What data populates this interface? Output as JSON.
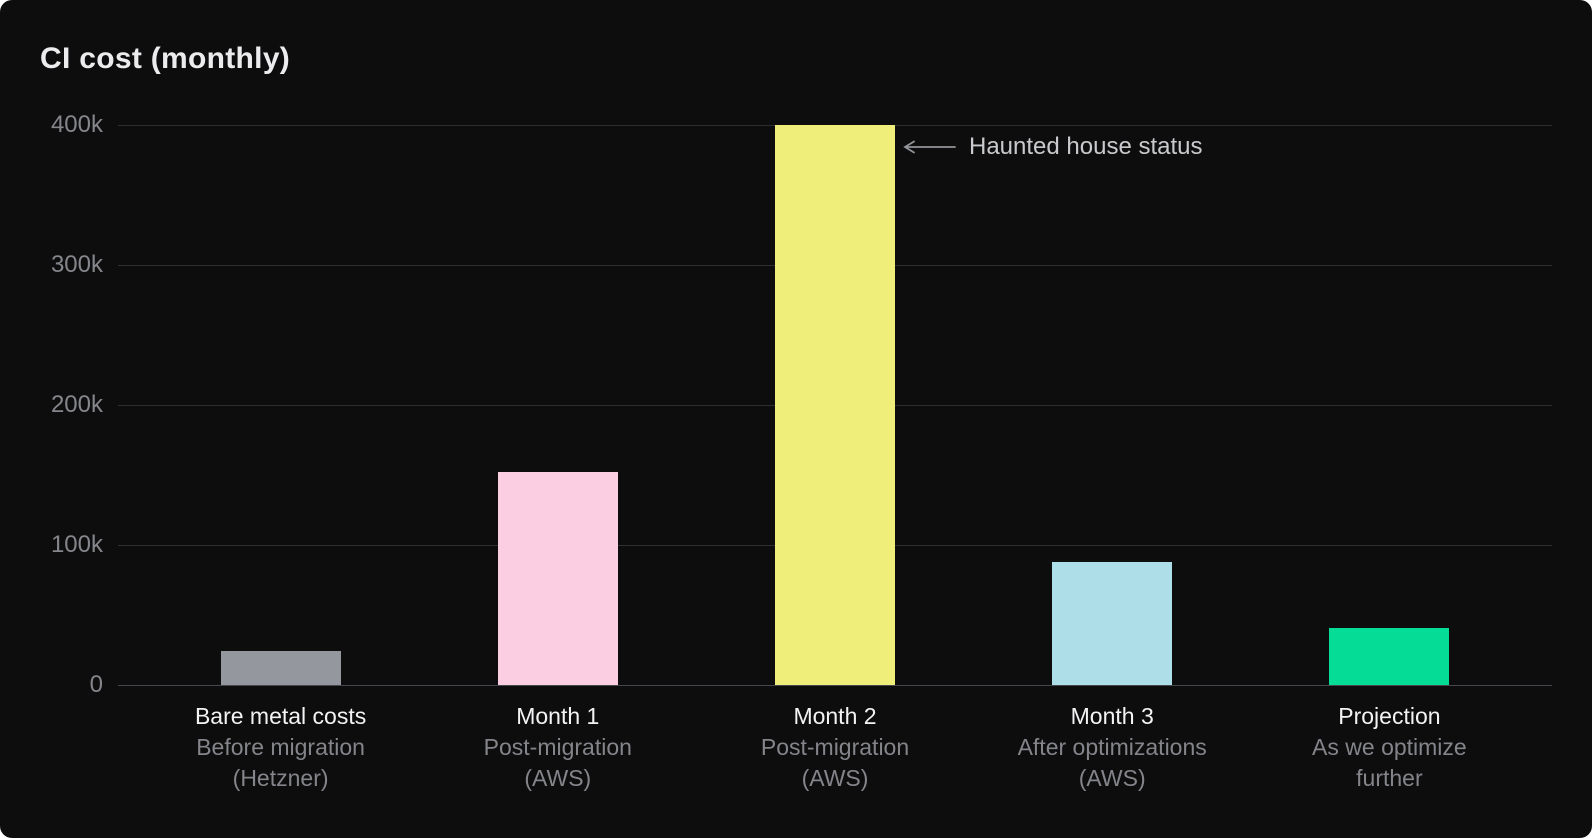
{
  "window": {
    "page_background": "#ffffff",
    "card_background": "#0d0d0d"
  },
  "title": "CI cost (monthly)",
  "annotation": {
    "icon": "left-arrow-icon",
    "text": "Haunted house status"
  },
  "chart_data": {
    "type": "bar",
    "title": "CI cost (monthly)",
    "ylim": [
      0,
      400000
    ],
    "grid": true,
    "legend": "none",
    "y_axis": {
      "ticks": [
        {
          "label": "400k",
          "value": 400000
        },
        {
          "label": "300k",
          "value": 300000
        },
        {
          "label": "200k",
          "value": 200000
        },
        {
          "label": "100k",
          "value": 100000
        },
        {
          "label": "0",
          "value": 0
        }
      ]
    },
    "categories": [
      {
        "name": "Bare metal costs",
        "sub_lines": [
          "Before migration",
          "(Hetzner)"
        ]
      },
      {
        "name": "Month 1",
        "sub_lines": [
          "Post-migration",
          "(AWS)"
        ]
      },
      {
        "name": "Month 2",
        "sub_lines": [
          "Post-migration",
          "(AWS)"
        ]
      },
      {
        "name": "Month 3",
        "sub_lines": [
          "After optimizations",
          "(AWS)"
        ]
      },
      {
        "name": "Projection",
        "sub_lines": [
          "As we optimize",
          "further"
        ]
      }
    ],
    "values": [
      24000,
      152000,
      400000,
      88000,
      41000
    ],
    "bar_colors": [
      "#94979e",
      "#fccee2",
      "#f0ee7a",
      "#aedfe9",
      "#05dd96"
    ],
    "annotation": {
      "text": "Haunted house status",
      "target_category": "Month 2",
      "arrow_direction": "left"
    },
    "colors": {
      "title": "#ececee",
      "grid": "#2e2f33",
      "baseline": "#47484d",
      "tick_label": "#85868c",
      "category_label": "#f3f3f5",
      "category_sublabel": "#84858b",
      "annotation_text": "#c9cacd",
      "arrow": "#939499"
    }
  }
}
